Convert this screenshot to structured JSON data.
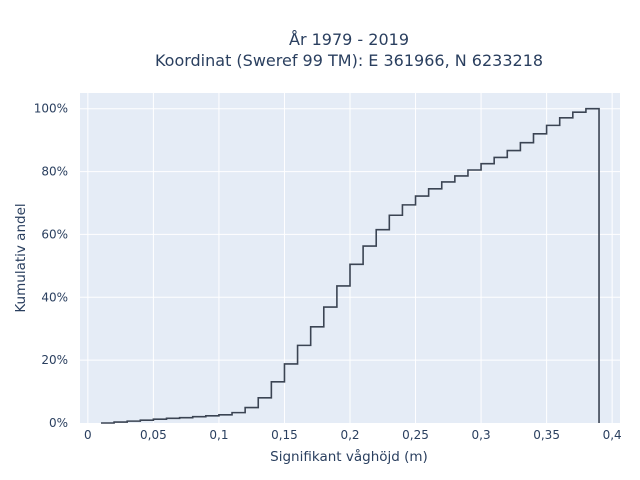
{
  "chart_data": {
    "type": "line",
    "line_shape": "step",
    "title": "År 1979 - 2019",
    "subtitle": "Koordinat (Sweref 99 TM): E 361966, N 6233218",
    "xlabel": "Signifikant våghöjd (m)",
    "ylabel": "Kumulativ andel",
    "xlim": [
      -0.006,
      0.406
    ],
    "ylim": [
      0,
      1.05
    ],
    "x_ticks": [
      0,
      0.05,
      0.1,
      0.15,
      0.2,
      0.25,
      0.3,
      0.35,
      0.4
    ],
    "x_tick_labels": [
      "0",
      "0,05",
      "0,1",
      "0,15",
      "0,2",
      "0,25",
      "0,3",
      "0,35",
      "0,4"
    ],
    "y_ticks": [
      0,
      0.2,
      0.4,
      0.6,
      0.8,
      1.0
    ],
    "y_tick_labels": [
      "0%",
      "20%",
      "40%",
      "60%",
      "80%",
      "100%"
    ],
    "grid": true,
    "legend": "none",
    "series": [
      {
        "color": "#3b4453",
        "x": [
          0.01,
          0.02,
          0.03,
          0.04,
          0.05,
          0.06,
          0.07,
          0.08,
          0.09,
          0.1,
          0.11,
          0.12,
          0.13,
          0.14,
          0.15,
          0.16,
          0.17,
          0.18,
          0.19,
          0.2,
          0.21,
          0.22,
          0.23,
          0.24,
          0.25,
          0.26,
          0.27,
          0.28,
          0.29,
          0.3,
          0.31,
          0.32,
          0.33,
          0.34,
          0.35,
          0.36,
          0.37,
          0.38,
          0.39,
          0.39
        ],
        "y": [
          0.0,
          0.003,
          0.006,
          0.009,
          0.012,
          0.015,
          0.017,
          0.02,
          0.023,
          0.026,
          0.033,
          0.049,
          0.08,
          0.131,
          0.188,
          0.247,
          0.306,
          0.369,
          0.436,
          0.505,
          0.563,
          0.615,
          0.661,
          0.694,
          0.722,
          0.745,
          0.767,
          0.786,
          0.805,
          0.825,
          0.845,
          0.867,
          0.892,
          0.92,
          0.947,
          0.971,
          0.989,
          1.0,
          1.0,
          0.0
        ]
      }
    ]
  }
}
